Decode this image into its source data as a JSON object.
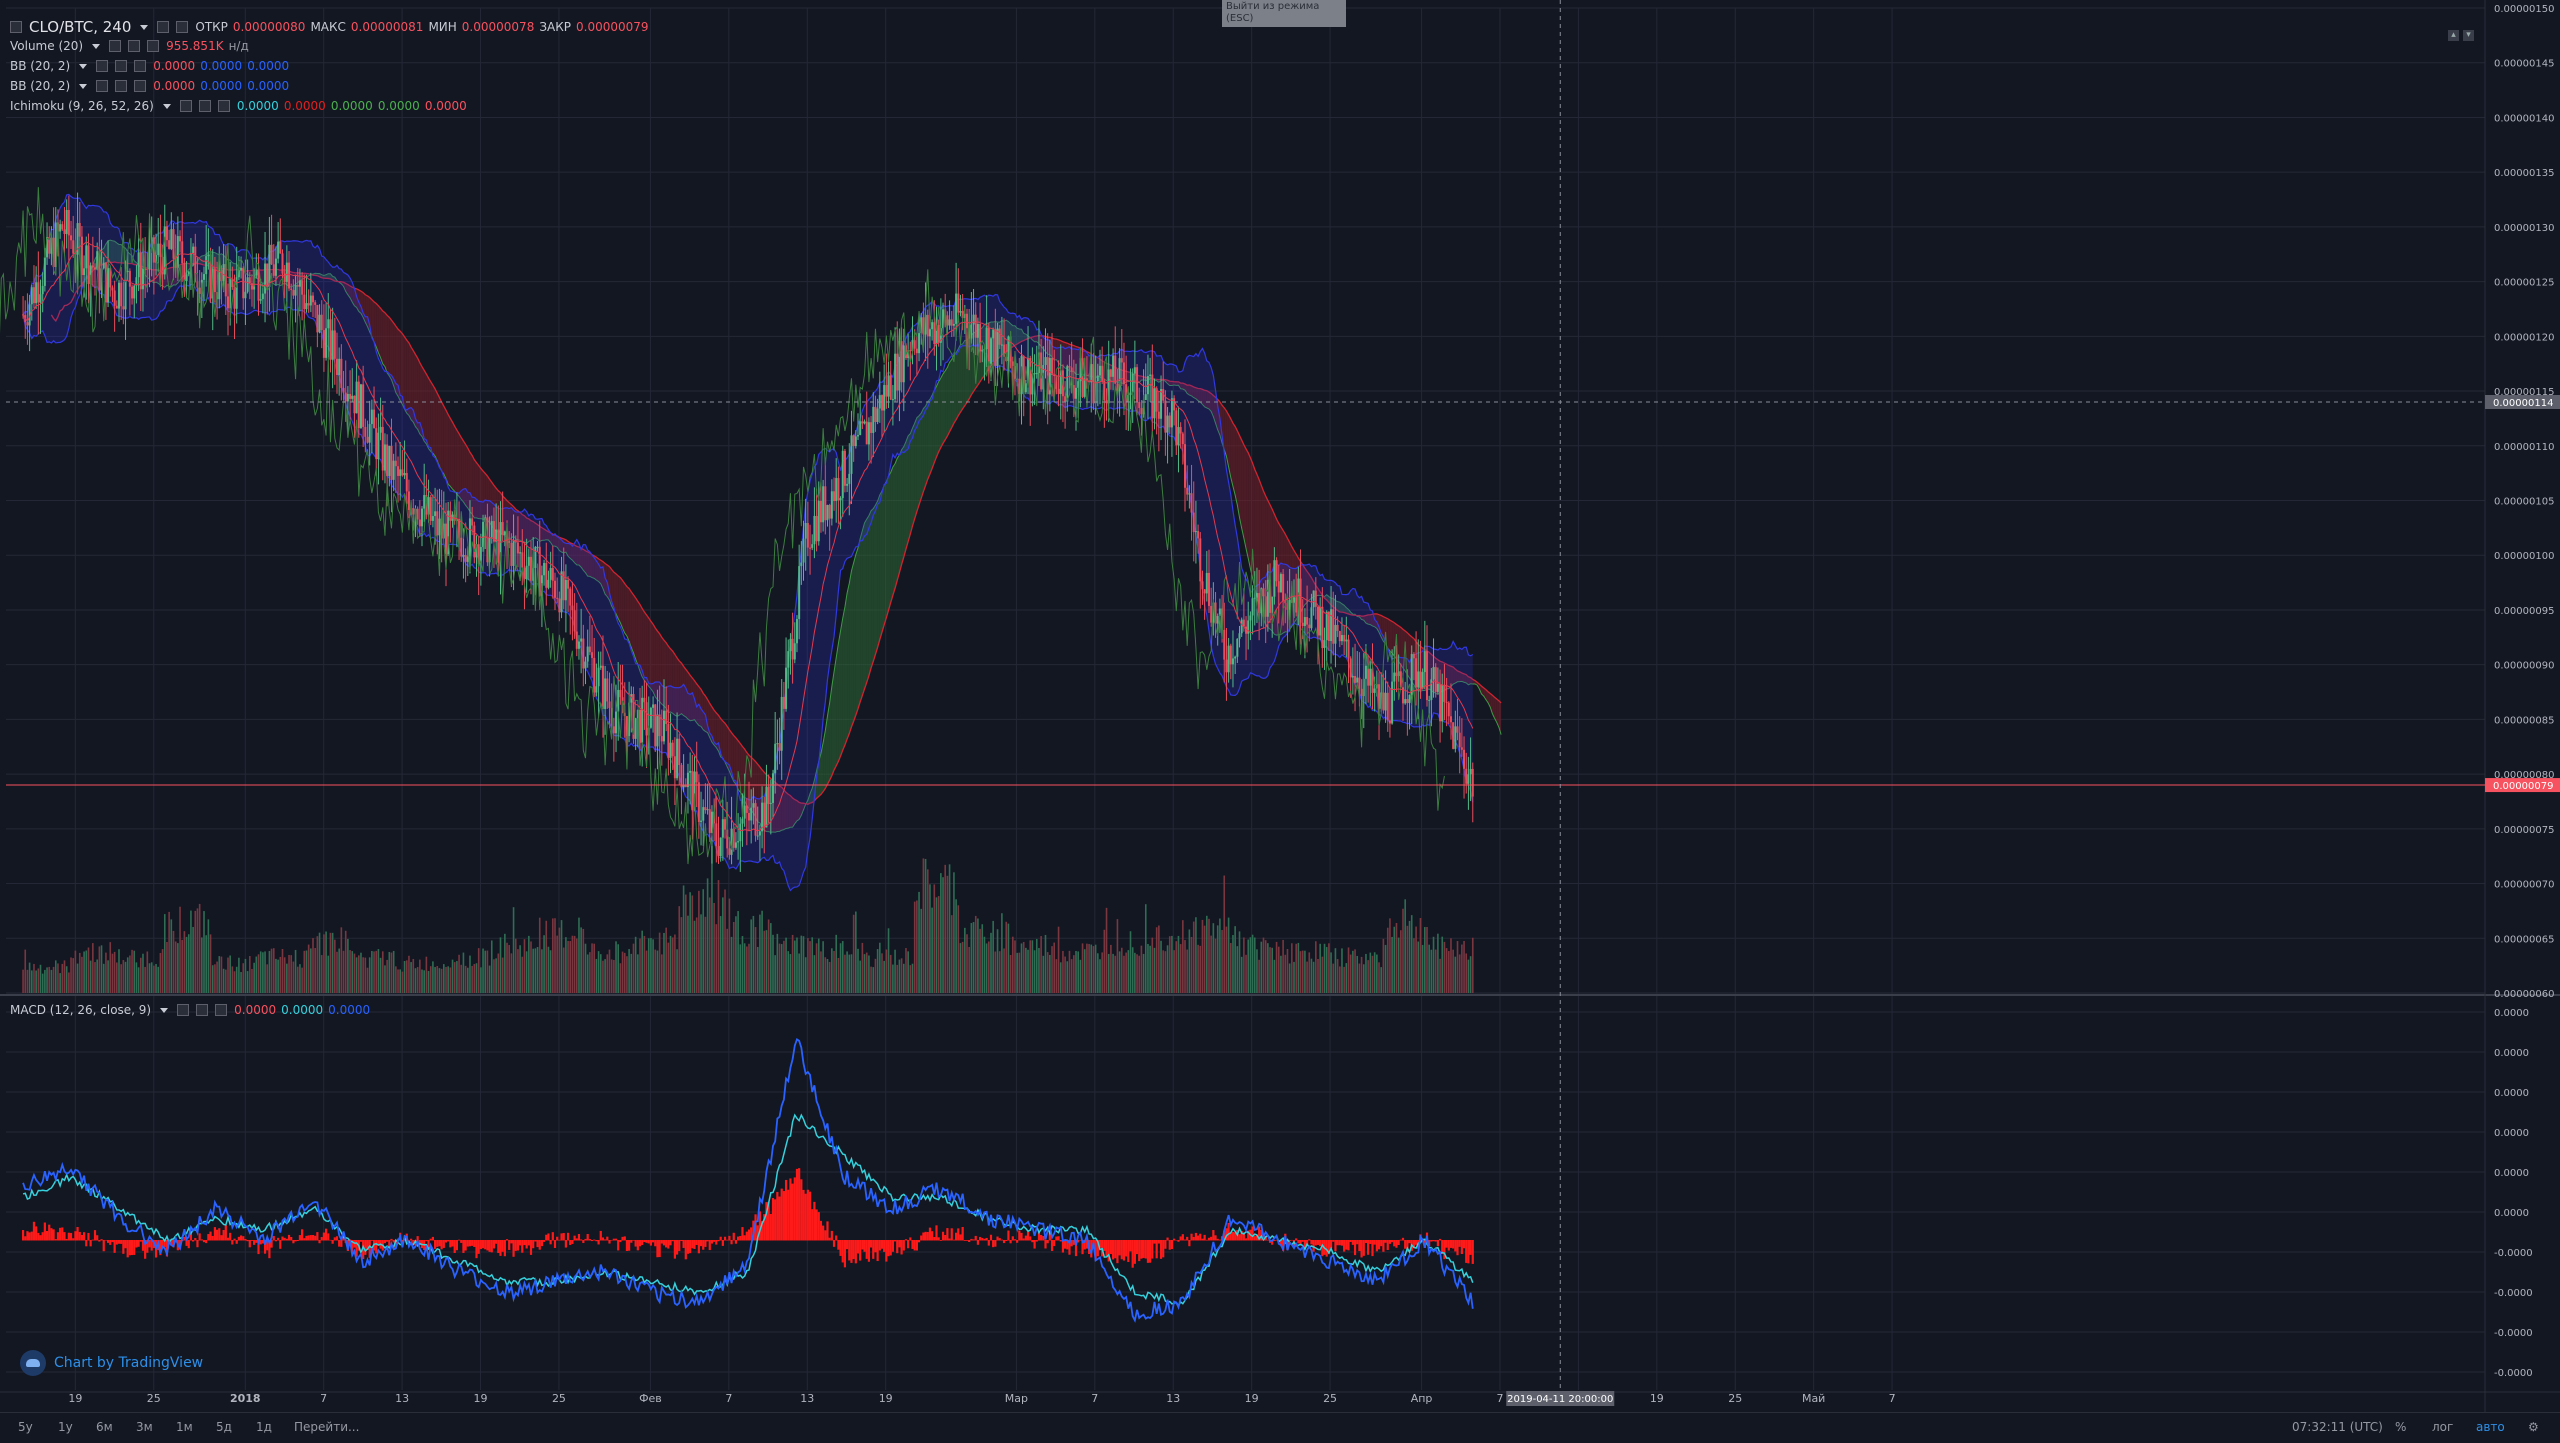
{
  "header": {
    "symbol": "CLO/BTC, 240",
    "open_label": "ОТКР",
    "open_value": "0.00000080",
    "high_label": "МАКС",
    "high_value": "0.00000081",
    "low_label": "МИН",
    "low_value": "0.00000078",
    "close_label": "ЗАКР",
    "close_value": "0.00000079"
  },
  "indicators": {
    "volume": {
      "label": "Volume (20)",
      "value": "955.851K",
      "value2": "н/д"
    },
    "bb1": {
      "label": "BB (20, 2)",
      "v1": "0.0000",
      "v2": "0.0000",
      "v3": "0.0000"
    },
    "bb2": {
      "label": "BB (20, 2)",
      "v1": "0.0000",
      "v2": "0.0000",
      "v3": "0.0000"
    },
    "ichimoku": {
      "label": "Ichimoku (9, 26, 52, 26)",
      "v1": "0.0000",
      "v2": "0.0000",
      "v3": "0.0000",
      "v4": "0.0000",
      "v5": "0.0000"
    },
    "macd": {
      "label": "MACD (12, 26, close, 9)",
      "v1": "0.0000",
      "v2": "0.0000",
      "v3": "0.0000"
    }
  },
  "exit_fullscreen": "Выйти из режима (ESC)",
  "crosshair": {
    "time_label": "2019-04-11 20:00:00",
    "price_label": "0.00000114"
  },
  "last_price_label": "0.00000079",
  "brand": "Chart by TradingView",
  "bottom_bar": {
    "ranges": [
      "5y",
      "1y",
      "6м",
      "3м",
      "1м",
      "5д",
      "1д",
      "Перейти..."
    ],
    "clock": "07:32:11 (UTC)",
    "percent": "%",
    "log": "лог",
    "auto": "авто"
  },
  "colors": {
    "background": "#131722",
    "grid": "#242836",
    "up": "#53b987",
    "down": "#eb4d5c",
    "bb": "#2a2fbf",
    "ichimoku_cloud_bull": "#2e6b34",
    "ichimoku_cloud_bear": "#7a1f2a",
    "macd_line": "#2962ff",
    "signal_line": "#36d1dc",
    "histogram": "#ff1a1a",
    "last_price": "#f7525f"
  },
  "chart_data": [
    {
      "type": "candlestick",
      "title": "CLO/BTC, 240",
      "y_unit": "BTC",
      "ylim": [
        6e-07,
        1.5e-06
      ],
      "y_ticks": [
        "0.00000150",
        "0.00000145",
        "0.00000140",
        "0.00000135",
        "0.00000130",
        "0.00000125",
        "0.00000120",
        "0.00000115",
        "0.00000110",
        "0.00000105",
        "0.00000100",
        "0.00000095",
        "0.00000090",
        "0.00000085",
        "0.00000080",
        "0.00000075",
        "0.00000070",
        "0.00000065",
        "0.00000060"
      ],
      "x_ticks": [
        "19",
        "25",
        "2018",
        "7",
        "13",
        "19",
        "25",
        "Фев",
        "7",
        "13",
        "19",
        "Мар",
        "7",
        "13",
        "19",
        "25",
        "Апр",
        "7",
        "13",
        "19",
        "25",
        "Май",
        "7"
      ],
      "price_path": [
        {
          "t": "2017-12-15",
          "close": 1.22e-06
        },
        {
          "t": "2017-12-18",
          "close": 1.3e-06
        },
        {
          "t": "2017-12-22",
          "close": 1.24e-06
        },
        {
          "t": "2017-12-26",
          "close": 1.28e-06
        },
        {
          "t": "2017-12-31",
          "close": 1.24e-06
        },
        {
          "t": "2018-01-04",
          "close": 1.27e-06
        },
        {
          "t": "2018-01-08",
          "close": 1.18e-06
        },
        {
          "t": "2018-01-12",
          "close": 1.08e-06
        },
        {
          "t": "2018-01-16",
          "close": 1.02e-06
        },
        {
          "t": "2018-01-21",
          "close": 1.01e-06
        },
        {
          "t": "2018-01-25",
          "close": 9.7e-07
        },
        {
          "t": "2018-01-29",
          "close": 8.6e-07
        },
        {
          "t": "2018-02-02",
          "close": 8.4e-07
        },
        {
          "t": "2018-02-06",
          "close": 7.4e-07
        },
        {
          "t": "2018-02-10",
          "close": 7.7e-07
        },
        {
          "t": "2018-02-13",
          "close": 1.02e-06
        },
        {
          "t": "2018-02-17",
          "close": 1.1e-06
        },
        {
          "t": "2018-02-21",
          "close": 1.2e-06
        },
        {
          "t": "2018-02-25",
          "close": 1.22e-06
        },
        {
          "t": "2018-03-01",
          "close": 1.17e-06
        },
        {
          "t": "2018-03-05",
          "close": 1.16e-06
        },
        {
          "t": "2018-03-09",
          "close": 1.16e-06
        },
        {
          "t": "2018-03-13",
          "close": 1.13e-06
        },
        {
          "t": "2018-03-15",
          "close": 1e-06
        },
        {
          "t": "2018-03-17",
          "close": 9.1e-07
        },
        {
          "t": "2018-03-21",
          "close": 9.8e-07
        },
        {
          "t": "2018-03-25",
          "close": 9.3e-07
        },
        {
          "t": "2018-03-29",
          "close": 8.6e-07
        },
        {
          "t": "2018-04-01",
          "close": 9e-07
        },
        {
          "t": "2018-04-03",
          "close": 8.5e-07
        },
        {
          "t": "2018-04-05",
          "close": 7.9e-07
        }
      ],
      "last_price": 7.9e-07
    },
    {
      "type": "bar",
      "title": "Volume (20)",
      "last_value": "955.851K",
      "relative_profile": [
        0.22,
        0.35,
        0.3,
        0.6,
        0.25,
        0.3,
        0.45,
        0.3,
        0.25,
        0.3,
        0.4,
        0.5,
        0.35,
        0.45,
        0.8,
        0.55,
        0.4,
        0.35,
        0.3,
        0.9,
        0.5,
        0.4,
        0.35,
        0.45,
        0.5,
        0.55,
        0.4,
        0.35,
        0.3,
        0.55,
        0.4
      ]
    },
    {
      "type": "line",
      "title": "MACD (12, 26, close, 9)",
      "y_ticks": [
        "0.0000",
        "0.0000",
        "0.0000",
        "0.0000",
        "0.0000",
        "0.0000",
        "-0.0000",
        "-0.0000",
        "-0.0000",
        "-0.0000"
      ],
      "series": [
        {
          "name": "MACD",
          "values": [
            0.25,
            0.35,
            0.1,
            -0.05,
            0.15,
            0.0,
            0.2,
            -0.1,
            0.0,
            -0.15,
            -0.25,
            -0.2,
            -0.15,
            -0.25,
            -0.3,
            -0.1,
            0.95,
            0.3,
            0.15,
            0.25,
            0.1,
            0.05,
            0.0,
            -0.35,
            -0.3,
            0.1,
            0.0,
            -0.1,
            -0.2,
            0.0,
            -0.3
          ]
        },
        {
          "name": "Signal",
          "values": [
            0.2,
            0.3,
            0.15,
            0.0,
            0.1,
            0.05,
            0.15,
            -0.05,
            0.0,
            -0.1,
            -0.2,
            -0.2,
            -0.15,
            -0.2,
            -0.25,
            -0.15,
            0.6,
            0.4,
            0.2,
            0.2,
            0.1,
            0.05,
            0.05,
            -0.25,
            -0.3,
            0.05,
            0.0,
            -0.05,
            -0.15,
            0.0,
            -0.2
          ]
        }
      ]
    }
  ]
}
